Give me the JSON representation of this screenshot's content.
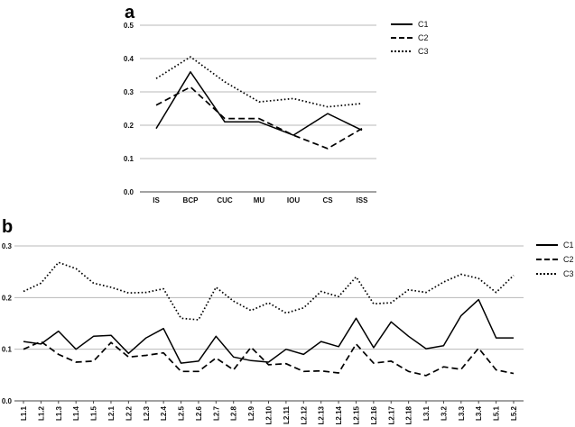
{
  "chart_data": [
    {
      "panel": "a",
      "type": "line",
      "categories": [
        "IS",
        "BCP",
        "CUC",
        "MU",
        "IOU",
        "CS",
        "ISS"
      ],
      "ylim": [
        0,
        0.5
      ],
      "yticks": [
        "0.0",
        "0.1",
        "0.2",
        "0.3",
        "0.4",
        "0.5"
      ],
      "grid": true,
      "legend": "top-right",
      "series": [
        {
          "name": "C1",
          "style": "solid",
          "values": [
            0.19,
            0.36,
            0.21,
            0.21,
            0.17,
            0.235,
            0.185
          ]
        },
        {
          "name": "C2",
          "style": "dashed",
          "values": [
            0.26,
            0.315,
            0.22,
            0.22,
            0.17,
            0.13,
            0.19
          ]
        },
        {
          "name": "C3",
          "style": "dotted",
          "values": [
            0.34,
            0.405,
            0.33,
            0.27,
            0.28,
            0.255,
            0.265
          ]
        }
      ]
    },
    {
      "panel": "b",
      "type": "line",
      "categories": [
        "L1.1",
        "L1.2",
        "L1.3",
        "L1.4",
        "L1.5",
        "L2.1",
        "L2.2",
        "L2.3",
        "L2.4",
        "L2.5",
        "L2.6",
        "L2.7",
        "L2.8",
        "L2.9",
        "L2.10",
        "L2.11",
        "L2.12",
        "L2.13",
        "L2.14",
        "L2.15",
        "L2.16",
        "L2.17",
        "L2.18",
        "L3.1",
        "L3.2",
        "L3.3",
        "L3.4",
        "L5.1",
        "L5.2"
      ],
      "ylim": [
        0,
        0.3
      ],
      "yticks": [
        "0.0",
        "0.1",
        "0.2",
        "0.3"
      ],
      "grid": true,
      "legend": "top-right",
      "series": [
        {
          "name": "C1",
          "style": "solid",
          "values": [
            0.115,
            0.11,
            0.135,
            0.1,
            0.125,
            0.127,
            0.092,
            0.122,
            0.14,
            0.073,
            0.077,
            0.125,
            0.085,
            0.078,
            0.075,
            0.1,
            0.09,
            0.115,
            0.105,
            0.16,
            0.103,
            0.153,
            0.125,
            0.101,
            0.107,
            0.165,
            0.196,
            0.122,
            0.122
          ]
        },
        {
          "name": "C2",
          "style": "dashed",
          "values": [
            0.1,
            0.115,
            0.09,
            0.075,
            0.077,
            0.113,
            0.085,
            0.088,
            0.093,
            0.057,
            0.057,
            0.083,
            0.06,
            0.104,
            0.07,
            0.072,
            0.057,
            0.058,
            0.054,
            0.11,
            0.073,
            0.077,
            0.057,
            0.049,
            0.066,
            0.061,
            0.102,
            0.06,
            0.053
          ]
        },
        {
          "name": "C3",
          "style": "dotted",
          "values": [
            0.212,
            0.228,
            0.268,
            0.256,
            0.228,
            0.22,
            0.209,
            0.21,
            0.217,
            0.16,
            0.157,
            0.22,
            0.193,
            0.175,
            0.19,
            0.17,
            0.18,
            0.212,
            0.202,
            0.24,
            0.188,
            0.19,
            0.215,
            0.21,
            0.23,
            0.245,
            0.237,
            0.21,
            0.243
          ]
        }
      ]
    }
  ]
}
